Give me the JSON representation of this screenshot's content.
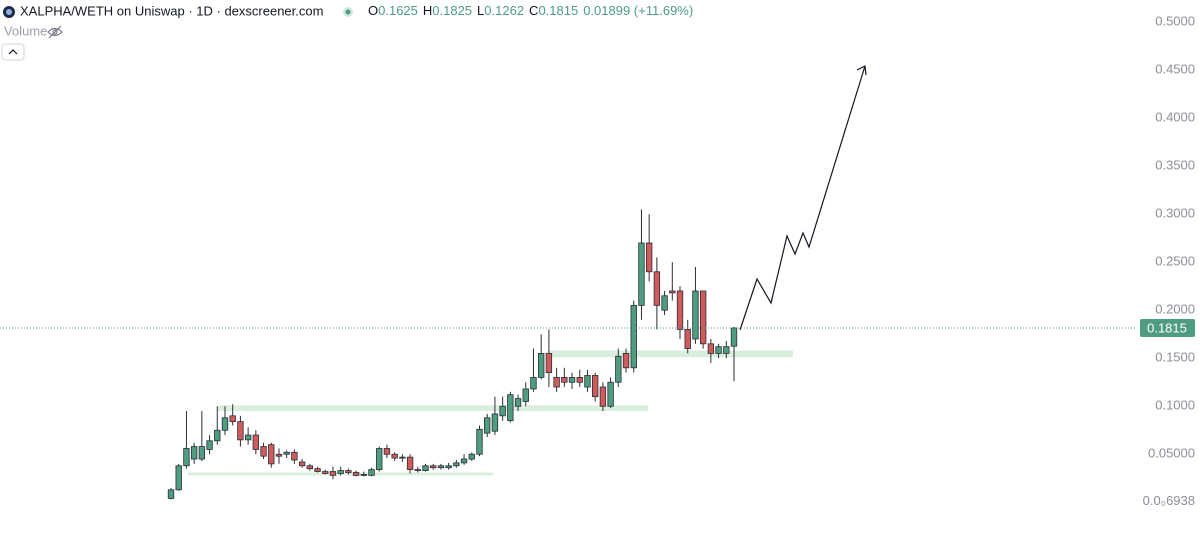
{
  "chart_data": {
    "type": "candlestick",
    "title": "XALPHA/WETH on Uniswap · 1D · dexscreener.com",
    "ohlc": [
      {
        "key": "O",
        "value": "0.1625"
      },
      {
        "key": "H",
        "value": "0.1825"
      },
      {
        "key": "L",
        "value": "0.1262"
      },
      {
        "key": "C",
        "value": "0.1815"
      }
    ],
    "change": "0.01899 (+11.69%)",
    "volume_label": "Volume",
    "up_color": "#4e9d80",
    "down_color": "#cf5b5b",
    "open": [
      0.004,
      0.013,
      0.038,
      0.045,
      0.045,
      0.055,
      0.064,
      0.075,
      0.09,
      0.084,
      0.065,
      0.07,
      0.058,
      0.06,
      0.05,
      0.05,
      0.052,
      0.042,
      0.038,
      0.035,
      0.032,
      0.032,
      0.03,
      0.033,
      0.031,
      0.029,
      0.028,
      0.034,
      0.056,
      0.05,
      0.046,
      0.047,
      0.034,
      0.033,
      0.038,
      0.036,
      0.036,
      0.038,
      0.041,
      0.045,
      0.05,
      0.072,
      0.074,
      0.09,
      0.085,
      0.1,
      0.105,
      0.118,
      0.13,
      0.155,
      0.13,
      0.13,
      0.125,
      0.13,
      0.12,
      0.132,
      0.12,
      0.1,
      0.125,
      0.155,
      0.14,
      0.205,
      0.27,
      0.24,
      0.2,
      0.22,
      0.22,
      0.18,
      0.17,
      0.22,
      0.165,
      0.155,
      0.155,
      0.1625
    ],
    "high": [
      0.015,
      0.04,
      0.095,
      0.062,
      0.095,
      0.07,
      0.1,
      0.1,
      0.102,
      0.09,
      0.078,
      0.075,
      0.062,
      0.062,
      0.056,
      0.054,
      0.055,
      0.045,
      0.04,
      0.037,
      0.034,
      0.037,
      0.037,
      0.035,
      0.033,
      0.032,
      0.036,
      0.058,
      0.06,
      0.052,
      0.05,
      0.05,
      0.037,
      0.04,
      0.04,
      0.04,
      0.041,
      0.044,
      0.05,
      0.052,
      0.08,
      0.092,
      0.11,
      0.11,
      0.115,
      0.112,
      0.125,
      0.16,
      0.175,
      0.18,
      0.14,
      0.14,
      0.135,
      0.138,
      0.138,
      0.135,
      0.125,
      0.13,
      0.16,
      0.16,
      0.21,
      0.305,
      0.3,
      0.255,
      0.22,
      0.25,
      0.225,
      0.19,
      0.245,
      0.22,
      0.17,
      0.165,
      0.168,
      0.1825
    ],
    "low": [
      0.003,
      0.012,
      0.035,
      0.04,
      0.043,
      0.05,
      0.06,
      0.07,
      0.08,
      0.058,
      0.06,
      0.05,
      0.045,
      0.036,
      0.04,
      0.046,
      0.04,
      0.036,
      0.033,
      0.031,
      0.029,
      0.024,
      0.028,
      0.029,
      0.027,
      0.027,
      0.027,
      0.032,
      0.046,
      0.043,
      0.042,
      0.03,
      0.031,
      0.032,
      0.034,
      0.034,
      0.034,
      0.036,
      0.039,
      0.043,
      0.048,
      0.068,
      0.07,
      0.085,
      0.083,
      0.095,
      0.1,
      0.115,
      0.128,
      0.12,
      0.115,
      0.12,
      0.118,
      0.12,
      0.115,
      0.105,
      0.095,
      0.098,
      0.12,
      0.135,
      0.135,
      0.19,
      0.23,
      0.18,
      0.195,
      0.21,
      0.17,
      0.155,
      0.165,
      0.16,
      0.145,
      0.15,
      0.15,
      0.1262
    ],
    "close": [
      0.013,
      0.038,
      0.056,
      0.058,
      0.058,
      0.064,
      0.075,
      0.088,
      0.084,
      0.065,
      0.07,
      0.055,
      0.048,
      0.04,
      0.048,
      0.052,
      0.044,
      0.038,
      0.035,
      0.032,
      0.03,
      0.028,
      0.033,
      0.031,
      0.028,
      0.028,
      0.034,
      0.056,
      0.05,
      0.046,
      0.047,
      0.034,
      0.033,
      0.038,
      0.036,
      0.038,
      0.038,
      0.041,
      0.045,
      0.05,
      0.076,
      0.088,
      0.092,
      0.1,
      0.112,
      0.108,
      0.118,
      0.13,
      0.155,
      0.135,
      0.12,
      0.125,
      0.13,
      0.125,
      0.132,
      0.11,
      0.1,
      0.125,
      0.152,
      0.14,
      0.205,
      0.27,
      0.24,
      0.205,
      0.215,
      0.218,
      0.18,
      0.16,
      0.22,
      0.165,
      0.155,
      0.162,
      0.162,
      0.1815
    ],
    "zones": [
      {
        "low": 0.028,
        "high": 0.031
      },
      {
        "low": 0.095,
        "high": 0.101
      },
      {
        "low": 0.151,
        "high": 0.158
      }
    ],
    "last_price": 0.1815,
    "ylim": [
      -0.032,
      0.523
    ],
    "yticks": [
      {
        "value": 0.0006938,
        "label": "0.0₀6938"
      },
      {
        "value": 0.05,
        "label": "0.05000"
      },
      {
        "value": 0.1,
        "label": "0.1000"
      },
      {
        "value": 0.15,
        "label": "0.1500"
      },
      {
        "value": 0.2,
        "label": "0.2000"
      },
      {
        "value": 0.25,
        "label": "0.2500"
      },
      {
        "value": 0.3,
        "label": "0.3000"
      },
      {
        "value": 0.35,
        "label": "0.3500"
      },
      {
        "value": 0.4,
        "label": "0.4000"
      },
      {
        "value": 0.45,
        "label": "0.4500"
      },
      {
        "value": 0.5,
        "label": "0.5000"
      }
    ]
  }
}
